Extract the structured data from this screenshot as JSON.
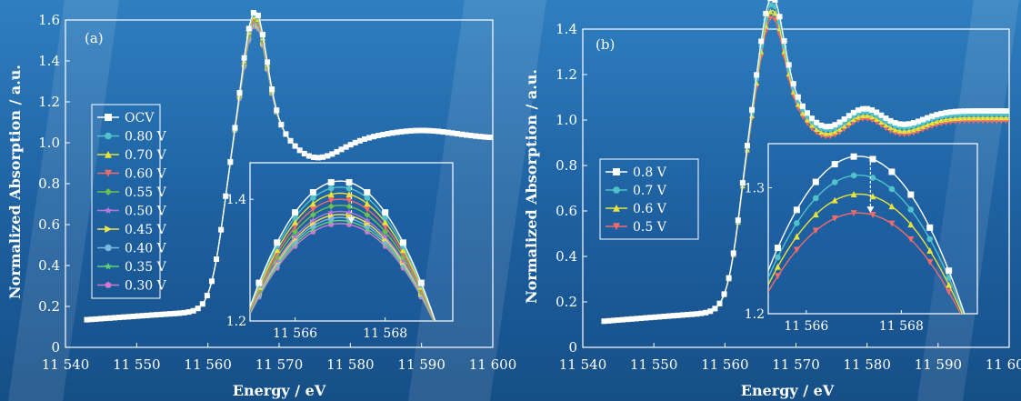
{
  "chart_data": [
    {
      "type": "line",
      "panel_label": "(a)",
      "xlabel": "Energy / eV",
      "ylabel": "Normalized Absorption / a.u.",
      "xlim": [
        11540,
        11600
      ],
      "ylim": [
        0,
        1.6
      ],
      "xticks": [
        11540,
        11550,
        11560,
        11570,
        11580,
        11590,
        11600
      ],
      "xtick_labels": [
        "11 540",
        "11 550",
        "11 560",
        "11 570",
        "11 580",
        "11 590",
        "11 600"
      ],
      "yticks": [
        0,
        0.2,
        0.4,
        0.6,
        0.8,
        1.0,
        1.2,
        1.4,
        1.6
      ],
      "ytick_labels": [
        "0",
        "0.2",
        "0.4",
        "0.6",
        "0.8",
        "1.0",
        "1.2",
        "1.4",
        "1.6"
      ],
      "legend_position": "left",
      "series": [
        {
          "name": "OCV",
          "color": "#ffffff",
          "marker": "square",
          "peak": 1.43,
          "post": 1.02
        },
        {
          "name": "0.80 V",
          "color": "#4fc3c9",
          "marker": "circle",
          "peak": 1.42,
          "post": 1.02
        },
        {
          "name": "0.70 V",
          "color": "#e8e23a",
          "marker": "triangle-up",
          "peak": 1.41,
          "post": 1.02
        },
        {
          "name": "0.60 V",
          "color": "#f06b6b",
          "marker": "triangle-down",
          "peak": 1.4,
          "post": 1.02
        },
        {
          "name": "0.55 V",
          "color": "#6cc24a",
          "marker": "diamond",
          "peak": 1.39,
          "post": 1.02
        },
        {
          "name": "0.50 V",
          "color": "#b27ad6",
          "marker": "star",
          "peak": 1.38,
          "post": 1.02
        },
        {
          "name": "0.45 V",
          "color": "#f2e14c",
          "marker": "triangle-right",
          "peak": 1.375,
          "post": 1.02
        },
        {
          "name": "0.40 V",
          "color": "#7ab6e0",
          "marker": "circle",
          "peak": 1.37,
          "post": 1.02
        },
        {
          "name": "0.35 V",
          "color": "#5fd17a",
          "marker": "star",
          "peak": 1.365,
          "post": 1.02
        },
        {
          "name": "0.30 V",
          "color": "#d27ad0",
          "marker": "pentagon",
          "peak": 1.36,
          "post": 1.02
        }
      ],
      "inset": {
        "xlim": [
          11565,
          11569.5
        ],
        "ylim": [
          1.2,
          1.46
        ],
        "xticks": [
          11566,
          11568
        ],
        "xtick_labels": [
          "11 566",
          "11 568"
        ],
        "yticks": [
          1.2,
          1.4
        ],
        "ytick_labels": [
          "1.2",
          "1.4"
        ],
        "peak_x": 11567,
        "half_width": 2.2
      }
    },
    {
      "type": "line",
      "panel_label": "(b)",
      "xlabel": "Energy / eV",
      "ylabel": "Normalized Absorption / a.u.",
      "xlim": [
        11540,
        11600
      ],
      "ylim": [
        0,
        1.4
      ],
      "xticks": [
        11540,
        11550,
        11560,
        11570,
        11580,
        11590,
        11600
      ],
      "xtick_labels": [
        "11 540",
        "11 550",
        "11 560",
        "11 570",
        "11 580",
        "11 590",
        "11 600"
      ],
      "yticks": [
        0,
        0.2,
        0.4,
        0.6,
        0.8,
        1.0,
        1.2,
        1.4
      ],
      "ytick_labels": [
        "0",
        "0.2",
        "0.4",
        "0.6",
        "0.8",
        "1.0",
        "1.2",
        "1.4"
      ],
      "legend_position": "left",
      "series": [
        {
          "name": "0.8 V",
          "color": "#ffffff",
          "marker": "square",
          "peak": 1.325,
          "post": 1.04
        },
        {
          "name": "0.7 V",
          "color": "#4fc3c9",
          "marker": "circle",
          "peak": 1.31,
          "post": 1.025
        },
        {
          "name": "0.6 V",
          "color": "#e8e23a",
          "marker": "triangle-up",
          "peak": 1.295,
          "post": 1.01
        },
        {
          "name": "0.5 V",
          "color": "#f06b6b",
          "marker": "triangle-down",
          "peak": 1.28,
          "post": 0.995
        }
      ],
      "inset": {
        "xlim": [
          11565.2,
          11569.6
        ],
        "ylim": [
          1.2,
          1.335
        ],
        "xticks": [
          11566,
          11568
        ],
        "xtick_labels": [
          "11 566",
          "11 568"
        ],
        "yticks": [
          1.2,
          1.3
        ],
        "ytick_labels": [
          "1.2",
          "1.3"
        ],
        "peak_x": 11567.1,
        "half_width": 2.4
      }
    }
  ]
}
